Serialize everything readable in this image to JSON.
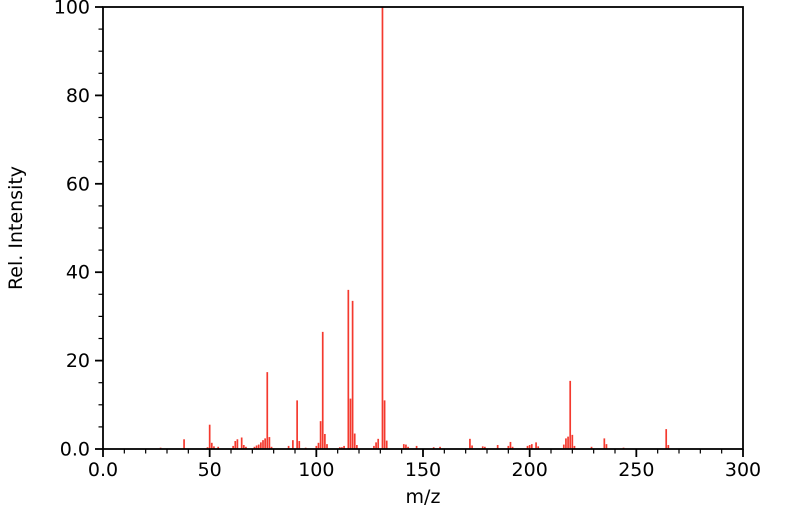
{
  "chart_data": {
    "type": "bar",
    "subtype": "mass-spectrum-sticks",
    "title": "",
    "xlabel": "m/z",
    "ylabel": "Rel. Intensity",
    "xlim": [
      0,
      300
    ],
    "ylim": [
      0,
      100
    ],
    "grid": false,
    "legend": null,
    "background": "#ffffff",
    "axis_color": "#000000",
    "bar_color": "#f4392e",
    "x_ticks": {
      "major_values": [
        0,
        50,
        100,
        150,
        200,
        250,
        300
      ],
      "major_labels": [
        "0.0",
        "50",
        "100",
        "150",
        "200",
        "250",
        "300"
      ],
      "minor_step": 10
    },
    "y_ticks": {
      "major_values": [
        0,
        20,
        40,
        60,
        80,
        100
      ],
      "major_labels": [
        "0.0",
        "20",
        "40",
        "60",
        "80",
        "100"
      ],
      "minor_step": 5
    },
    "peaks": {
      "mz": [
        27,
        38,
        49,
        50,
        51,
        52,
        54,
        61,
        62,
        63,
        65,
        66,
        67,
        71,
        72,
        73,
        74,
        75,
        76,
        77,
        78,
        79,
        87,
        89,
        91,
        92,
        95,
        100,
        101,
        102,
        103,
        104,
        105,
        111,
        112,
        113,
        115,
        116,
        117,
        118,
        119,
        127,
        128,
        129,
        131,
        132,
        133,
        141,
        142,
        143,
        147,
        155,
        158,
        172,
        173,
        178,
        179,
        185,
        190,
        191,
        192,
        199,
        200,
        201,
        203,
        204,
        216,
        217,
        218,
        219,
        220,
        221,
        229,
        235,
        236,
        244,
        264,
        265
      ],
      "intensity": [
        0.3,
        2.2,
        0.4,
        5.5,
        1.4,
        0.6,
        0.5,
        0.7,
        1.8,
        2.2,
        2.6,
        0.9,
        0.5,
        0.5,
        0.8,
        1.0,
        1.5,
        2.0,
        2.4,
        17.4,
        2.7,
        0.5,
        0.7,
        2.0,
        11.0,
        1.8,
        0.3,
        0.7,
        1.4,
        6.3,
        26.5,
        3.4,
        1.1,
        0.4,
        0.4,
        0.7,
        36.0,
        11.4,
        33.5,
        3.5,
        0.9,
        0.7,
        1.5,
        2.3,
        100.0,
        11.0,
        1.9,
        1.1,
        1.0,
        0.5,
        0.7,
        0.4,
        0.5,
        2.3,
        0.8,
        0.6,
        0.5,
        0.9,
        0.7,
        1.6,
        0.5,
        0.7,
        0.9,
        1.1,
        1.5,
        0.6,
        1.0,
        2.4,
        2.8,
        15.4,
        3.2,
        0.7,
        0.5,
        2.4,
        1.1,
        0.3,
        4.5,
        0.9
      ]
    }
  }
}
